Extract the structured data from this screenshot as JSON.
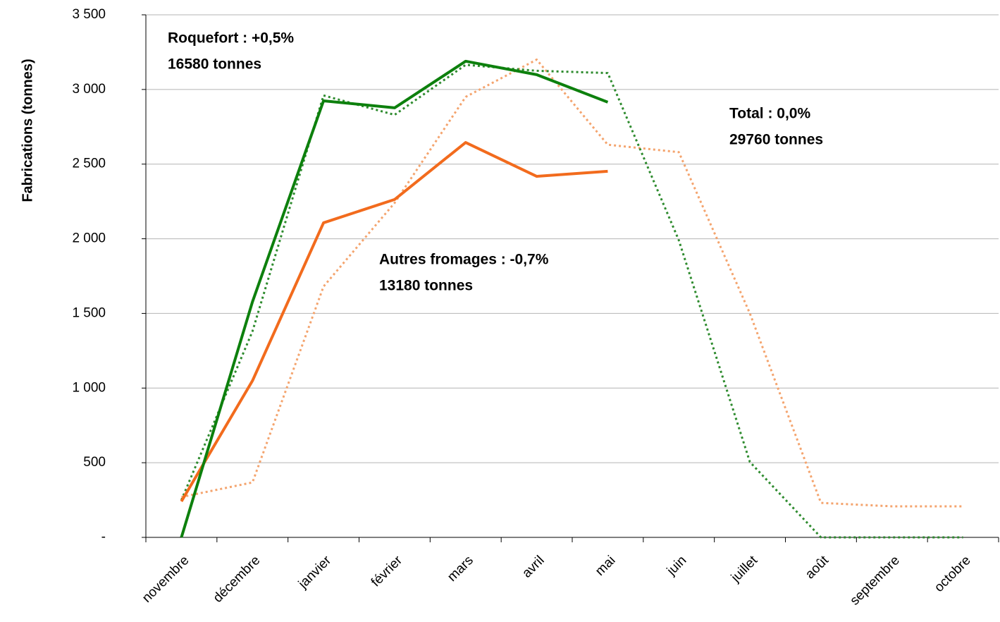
{
  "chart_data": {
    "type": "line",
    "y_label": "Fabrications (tonnes)",
    "categories": [
      "novembre",
      "décembre",
      "janvier",
      "février",
      "mars",
      "avril",
      "mai",
      "juin",
      "juillet",
      "août",
      "septembre",
      "octobre"
    ],
    "series": [
      {
        "color": "#f4a46e",
        "dashed": true,
        "values": [
          270,
          368,
          1680,
          2240,
          2950,
          3200,
          2630,
          2580,
          1500,
          231,
          208,
          208
        ]
      },
      {
        "color": "#2e8b2e",
        "dashed": true,
        "values": [
          250,
          1380,
          2960,
          2830,
          3165,
          3125,
          3110,
          1990,
          505,
          0,
          0,
          0
        ]
      },
      {
        "color": "#f26b1d",
        "dashed": false,
        "values": [
          241,
          1049,
          2107,
          2263,
          2645,
          2418,
          2452,
          null,
          null,
          null,
          null,
          null
        ]
      },
      {
        "color": "#0d800d",
        "dashed": false,
        "values": [
          0,
          1578,
          2924,
          2877,
          3189,
          3099,
          2915,
          null,
          null,
          null,
          null,
          null
        ]
      }
    ],
    "annotations": [
      {
        "lines": [
          "Roquefort : +0,5%",
          "16580 tonnes"
        ],
        "color": "#0d800d"
      },
      {
        "lines": [
          "Total : 0,0%",
          "29760 tonnes"
        ],
        "color": "#333399"
      },
      {
        "lines": [
          "Autres fromages : -0,7%",
          "13180 tonnes"
        ],
        "color": "#f26b1d"
      }
    ],
    "ylim": [
      0,
      3500
    ],
    "yticks": [
      {
        "value": 0,
        "label": "-"
      },
      500,
      {
        "value": 1000,
        "label": "1 000"
      },
      {
        "value": 1500,
        "label": "1 500"
      },
      {
        "value": 2000,
        "label": "2 000"
      },
      {
        "value": 2500,
        "label": "2 500"
      },
      {
        "value": 3000,
        "label": "3 000"
      },
      {
        "value": 3500,
        "label": "3 500"
      }
    ],
    "grid": true
  }
}
